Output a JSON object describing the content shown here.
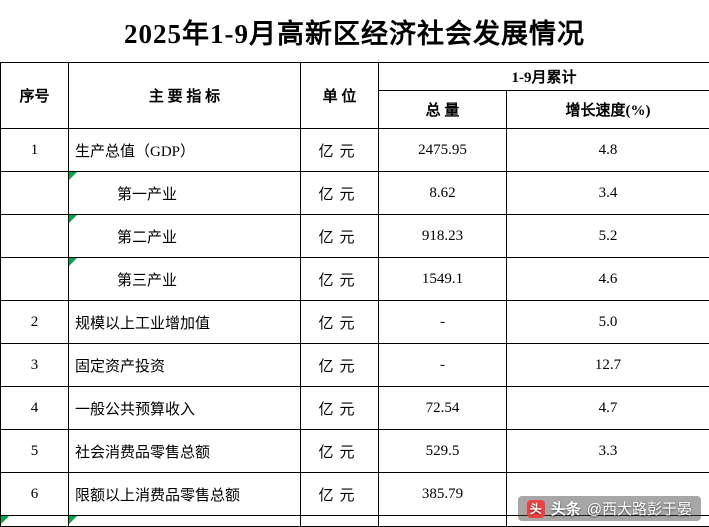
{
  "title": "2025年1-9月高新区经济社会发展情况",
  "table": {
    "headers": {
      "col_no": "序号",
      "col_indicator": "主 要 指 标",
      "col_unit": "单 位",
      "col_cumulative": "1-9月累计",
      "col_total": "总 量",
      "col_growth": "增长速度(%)"
    },
    "rows": [
      {
        "no": "1",
        "indicator": "生产总值（GDP）",
        "unit": "亿元",
        "total": "2475.95",
        "growth": "4.8",
        "indent": false,
        "marker": false
      },
      {
        "no": "",
        "indicator": "第一产业",
        "unit": "亿元",
        "total": "8.62",
        "growth": "3.4",
        "indent": true,
        "marker": true
      },
      {
        "no": "",
        "indicator": "第二产业",
        "unit": "亿元",
        "total": "918.23",
        "growth": "5.2",
        "indent": true,
        "marker": true
      },
      {
        "no": "",
        "indicator": "第三产业",
        "unit": "亿元",
        "total": "1549.1",
        "growth": "4.6",
        "indent": true,
        "marker": true
      },
      {
        "no": "2",
        "indicator": "规模以上工业增加值",
        "unit": "亿元",
        "total": "-",
        "growth": "5.0",
        "indent": false,
        "marker": false
      },
      {
        "no": "3",
        "indicator": "固定资产投资",
        "unit": "亿元",
        "total": "-",
        "growth": "12.7",
        "indent": false,
        "marker": false
      },
      {
        "no": "4",
        "indicator": "一般公共预算收入",
        "unit": "亿元",
        "total": "72.54",
        "growth": "4.7",
        "indent": false,
        "marker": false
      },
      {
        "no": "5",
        "indicator": "社会消费品零售总额",
        "unit": "亿元",
        "total": "529.5",
        "growth": "3.3",
        "indent": false,
        "marker": false
      },
      {
        "no": "6",
        "indicator": "限额以上消费品零售总额",
        "unit": "亿元",
        "total": "385.79",
        "growth": "",
        "indent": false,
        "marker": false
      }
    ]
  },
  "colors": {
    "marker_green": "#00a651",
    "border": "#000000",
    "watermark_logo_red": "#f04142"
  },
  "watermark": {
    "logo_char": "头",
    "brand": "头条",
    "handle": "@西大路彭于晏"
  }
}
